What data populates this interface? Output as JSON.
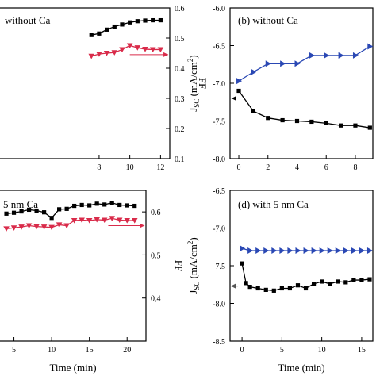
{
  "chart_data": [
    {
      "id": "a",
      "type": "line",
      "label": "without Ca",
      "xlabel": "",
      "ylabel": "FF",
      "xlim": [
        0,
        12.6
      ],
      "ylim": [
        0.1,
        0.6
      ],
      "xticks": [
        "8",
        "10",
        "12"
      ],
      "yticks": [
        "0.1",
        "0.2",
        "0.3",
        "0.4",
        "0.5",
        "0.6"
      ],
      "series": [
        {
          "color": "#000000",
          "marker": "square",
          "x": [
            7.5,
            8,
            8.5,
            9,
            9.5,
            10,
            10.5,
            11,
            11.5,
            12
          ],
          "y": [
            0.51,
            0.515,
            0.528,
            0.538,
            0.545,
            0.552,
            0.556,
            0.558,
            0.559,
            0.559
          ]
        },
        {
          "color": "#d92b4a",
          "marker": "triangle-down",
          "x": [
            7.5,
            8,
            8.5,
            9,
            9.5,
            10,
            10.5,
            11,
            11.5,
            12
          ],
          "y": [
            0.44,
            0.447,
            0.45,
            0.452,
            0.462,
            0.475,
            0.468,
            0.463,
            0.462,
            0.462
          ]
        }
      ],
      "arrow": {
        "color": "#d92b4a",
        "direction": "right",
        "x_from": 10,
        "x_to": 12.5,
        "y": 0.445
      }
    },
    {
      "id": "b",
      "type": "line",
      "label": "(b)  without Ca",
      "xlabel": "",
      "ylabel": "J_SC (mA/cm^2)",
      "xlim": [
        -0.6,
        9.2
      ],
      "ylim": [
        -8.0,
        -6.0
      ],
      "xticks": [
        "0",
        "2",
        "4",
        "6",
        "8"
      ],
      "yticks": [
        "-6.0",
        "-6.5",
        "-7.0",
        "-7.5",
        "-8.0"
      ],
      "series": [
        {
          "color": "#2a48b4",
          "marker": "triangle-right",
          "x": [
            0,
            1,
            2,
            3,
            4,
            5,
            6,
            7,
            8,
            9
          ],
          "y": [
            -6.97,
            -6.85,
            -6.74,
            -6.74,
            -6.74,
            -6.63,
            -6.63,
            -6.63,
            -6.63,
            -6.51
          ]
        },
        {
          "color": "#000000",
          "marker": "square",
          "x": [
            0,
            1,
            2,
            3,
            4,
            5,
            6,
            7,
            8,
            9
          ],
          "y": [
            -7.1,
            -7.37,
            -7.46,
            -7.49,
            -7.5,
            -7.51,
            -7.53,
            -7.56,
            -7.56,
            -7.59
          ]
        }
      ],
      "arrow": {
        "color": "#000000",
        "direction": "left",
        "x_from": -0.3,
        "x_to": -0.5,
        "y": -7.2
      }
    },
    {
      "id": "c",
      "type": "line",
      "label": "5 nm Ca",
      "xlabel": "Time (min)",
      "ylabel": "FF",
      "xlim": [
        0,
        22.5
      ],
      "ylim": [
        0.3,
        0.65
      ],
      "xticks": [
        "5",
        "10",
        "15",
        "20"
      ],
      "yticks": [
        "0,4",
        "0.5",
        "0.6"
      ],
      "series": [
        {
          "color": "#000000",
          "marker": "square",
          "x": [
            4,
            5,
            6,
            7,
            8,
            9,
            10,
            11,
            12,
            13,
            14,
            15,
            16,
            17,
            18,
            19,
            20,
            21
          ],
          "y": [
            0.596,
            0.598,
            0.601,
            0.605,
            0.603,
            0.599,
            0.586,
            0.606,
            0.607,
            0.614,
            0.616,
            0.615,
            0.619,
            0.617,
            0.621,
            0.616,
            0.615,
            0.614
          ]
        },
        {
          "color": "#d92b4a",
          "marker": "triangle-down",
          "x": [
            4,
            5,
            6,
            7,
            8,
            9,
            10,
            11,
            12,
            13,
            14,
            15,
            16,
            17,
            18,
            19,
            20,
            21
          ],
          "y": [
            0.561,
            0.563,
            0.565,
            0.568,
            0.566,
            0.565,
            0.564,
            0.57,
            0.568,
            0.58,
            0.581,
            0.58,
            0.582,
            0.581,
            0.585,
            0.581,
            0.58,
            0.58
          ]
        }
      ],
      "arrow": {
        "color": "#d92b4a",
        "direction": "right",
        "x_from": 17.5,
        "x_to": 22.3,
        "y": 0.568
      }
    },
    {
      "id": "d",
      "type": "line",
      "label": "(d)  with 5 nm Ca",
      "xlabel": "Time (min)",
      "ylabel": "J_SC (mA/cm^2)",
      "xlim": [
        -1.5,
        16.4
      ],
      "ylim": [
        -8.5,
        -6.5
      ],
      "xticks": [
        "0",
        "5",
        "10",
        "15"
      ],
      "yticks": [
        "-6.5",
        "-7.0",
        "-7.5",
        "-8.0",
        "-8.5"
      ],
      "series": [
        {
          "color": "#2a48b4",
          "marker": "triangle-right",
          "x": [
            0,
            1,
            2,
            3,
            4,
            5,
            6,
            7,
            8,
            9,
            10,
            11,
            12,
            13,
            14,
            15,
            16
          ],
          "y": [
            -7.27,
            -7.3,
            -7.3,
            -7.3,
            -7.3,
            -7.3,
            -7.3,
            -7.3,
            -7.3,
            -7.3,
            -7.3,
            -7.3,
            -7.3,
            -7.3,
            -7.3,
            -7.3,
            -7.3
          ]
        },
        {
          "color": "#000000",
          "marker": "square",
          "x": [
            0,
            0.5,
            1,
            2,
            3,
            4,
            5,
            6,
            7,
            8,
            9,
            10,
            11,
            12,
            13,
            14,
            15,
            16
          ],
          "y": [
            -7.47,
            -7.73,
            -7.78,
            -7.8,
            -7.82,
            -7.83,
            -7.8,
            -7.8,
            -7.76,
            -7.8,
            -7.74,
            -7.71,
            -7.74,
            -7.71,
            -7.72,
            -7.69,
            -7.69,
            -7.68
          ]
        }
      ],
      "arrow": {
        "color": "#555555",
        "direction": "left",
        "x_from": -0.5,
        "x_to": -1.4,
        "y": -7.77
      }
    }
  ]
}
